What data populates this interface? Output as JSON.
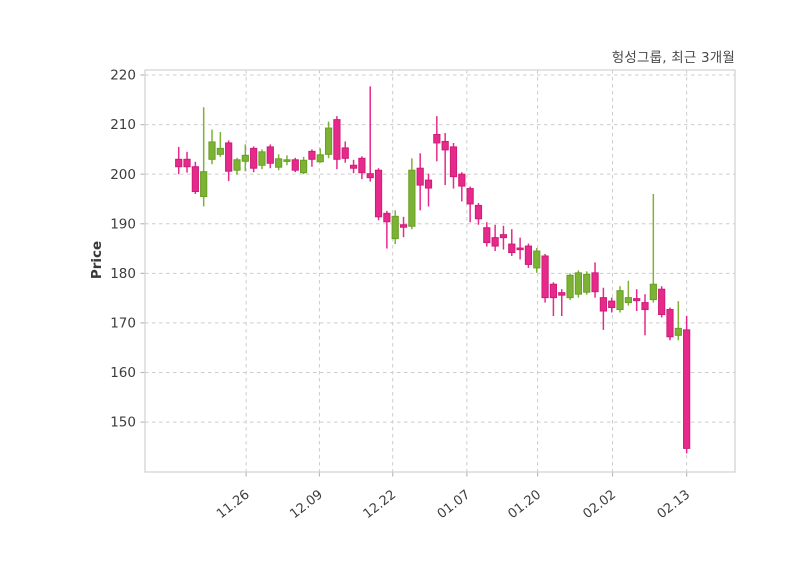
{
  "header": {
    "title": "헝성그룹, 최근 3개월"
  },
  "chart_data": {
    "type": "candlestick",
    "title": "헝성그룹, 최근 3개월",
    "xlabel": "",
    "ylabel": "Price",
    "grid": true,
    "legend": null,
    "ylim": [
      140,
      221
    ],
    "y_ticks": [
      150,
      160,
      170,
      180,
      190,
      200,
      210,
      220
    ],
    "x_ticks": [
      {
        "label": "11.26",
        "index": 8.1
      },
      {
        "label": "12.09",
        "index": 16.9
      },
      {
        "label": "12.22",
        "index": 25.7
      },
      {
        "label": "01.07",
        "index": 34.6
      },
      {
        "label": "01.20",
        "index": 43.1
      },
      {
        "label": "02.02",
        "index": 52.1
      },
      {
        "label": "02.13",
        "index": 61.0
      }
    ],
    "colors": {
      "up_fill": "#7cb334",
      "up_stroke": "#699e24",
      "down_fill": "#e62a8c",
      "down_stroke": "#d01a78",
      "grid": "#cccccc",
      "border": "#d4d4d4",
      "tick": "#bbbbbb",
      "tick_label": "#3d3d3d"
    },
    "candles_format": [
      "open",
      "high",
      "low",
      "close"
    ],
    "candles": [
      [
        203.0,
        205.5,
        200.0,
        201.5
      ],
      [
        203.0,
        204.5,
        200.3,
        201.5
      ],
      [
        201.5,
        202.5,
        196.0,
        196.5
      ],
      [
        195.5,
        213.5,
        193.5,
        200.5
      ],
      [
        203.0,
        209.0,
        202.0,
        206.5
      ],
      [
        204.0,
        208.5,
        203.5,
        205.2
      ],
      [
        206.3,
        206.8,
        198.6,
        200.6
      ],
      [
        200.8,
        203.3,
        199.9,
        202.9
      ],
      [
        202.6,
        206.0,
        200.6,
        203.8
      ],
      [
        205.2,
        205.6,
        200.4,
        201.2
      ],
      [
        201.8,
        205.0,
        201.0,
        204.5
      ],
      [
        205.5,
        206.0,
        201.2,
        202.2
      ],
      [
        201.4,
        204.0,
        200.8,
        203.1
      ],
      [
        202.6,
        203.8,
        201.8,
        202.9
      ],
      [
        202.9,
        203.3,
        200.4,
        200.8
      ],
      [
        200.3,
        203.5,
        200.0,
        202.8
      ],
      [
        204.6,
        205.0,
        201.5,
        203.0
      ],
      [
        202.5,
        205.2,
        202.3,
        203.9
      ],
      [
        204.0,
        210.6,
        203.2,
        209.3
      ],
      [
        211.0,
        211.7,
        201.0,
        203.0
      ],
      [
        205.3,
        206.6,
        202.3,
        203.2
      ],
      [
        201.8,
        202.9,
        200.2,
        201.2
      ],
      [
        203.2,
        203.6,
        199.0,
        200.3
      ],
      [
        200.1,
        217.7,
        198.5,
        199.3
      ],
      [
        200.8,
        201.2,
        190.7,
        191.4
      ],
      [
        192.1,
        192.6,
        185.0,
        190.4
      ],
      [
        187.0,
        192.7,
        185.9,
        191.5
      ],
      [
        189.8,
        191.4,
        187.3,
        189.3
      ],
      [
        189.5,
        203.2,
        188.9,
        200.8
      ],
      [
        201.2,
        204.2,
        192.7,
        197.8
      ],
      [
        198.8,
        200.1,
        193.5,
        197.2
      ],
      [
        208.0,
        211.7,
        202.6,
        206.3
      ],
      [
        206.6,
        208.3,
        197.8,
        204.9
      ],
      [
        205.5,
        206.3,
        197.1,
        199.5
      ],
      [
        200.0,
        200.4,
        194.5,
        197.6
      ],
      [
        197.1,
        197.5,
        190.3,
        194.0
      ],
      [
        193.7,
        194.2,
        189.8,
        191.0
      ],
      [
        189.2,
        190.3,
        185.4,
        186.2
      ],
      [
        187.2,
        189.8,
        184.5,
        185.5
      ],
      [
        187.8,
        189.6,
        184.8,
        187.2
      ],
      [
        185.9,
        188.9,
        183.5,
        184.2
      ],
      [
        185.1,
        187.2,
        182.8,
        184.9
      ],
      [
        185.5,
        186.0,
        181.1,
        181.8
      ],
      [
        181.1,
        185.1,
        180.1,
        184.5
      ],
      [
        183.5,
        183.9,
        174.1,
        175.1
      ],
      [
        177.8,
        178.2,
        171.4,
        175.1
      ],
      [
        176.1,
        176.8,
        171.4,
        175.6
      ],
      [
        175.1,
        180.0,
        174.6,
        179.6
      ],
      [
        175.8,
        180.6,
        175.1,
        180.1
      ],
      [
        176.2,
        180.4,
        175.7,
        179.8
      ],
      [
        180.1,
        182.2,
        175.1,
        176.3
      ],
      [
        175.1,
        177.1,
        168.6,
        172.4
      ],
      [
        174.4,
        175.1,
        172.1,
        173.1
      ],
      [
        172.7,
        177.4,
        172.1,
        176.5
      ],
      [
        174.1,
        178.5,
        173.5,
        175.1
      ],
      [
        174.9,
        176.8,
        172.4,
        174.5
      ],
      [
        174.1,
        175.8,
        167.5,
        172.7
      ],
      [
        174.7,
        196.0,
        174.1,
        177.8
      ],
      [
        176.8,
        177.4,
        171.1,
        171.7
      ],
      [
        172.7,
        173.1,
        166.5,
        167.2
      ],
      [
        167.5,
        174.4,
        166.5,
        168.9
      ],
      [
        168.6,
        171.4,
        143.7,
        144.7
      ]
    ]
  }
}
